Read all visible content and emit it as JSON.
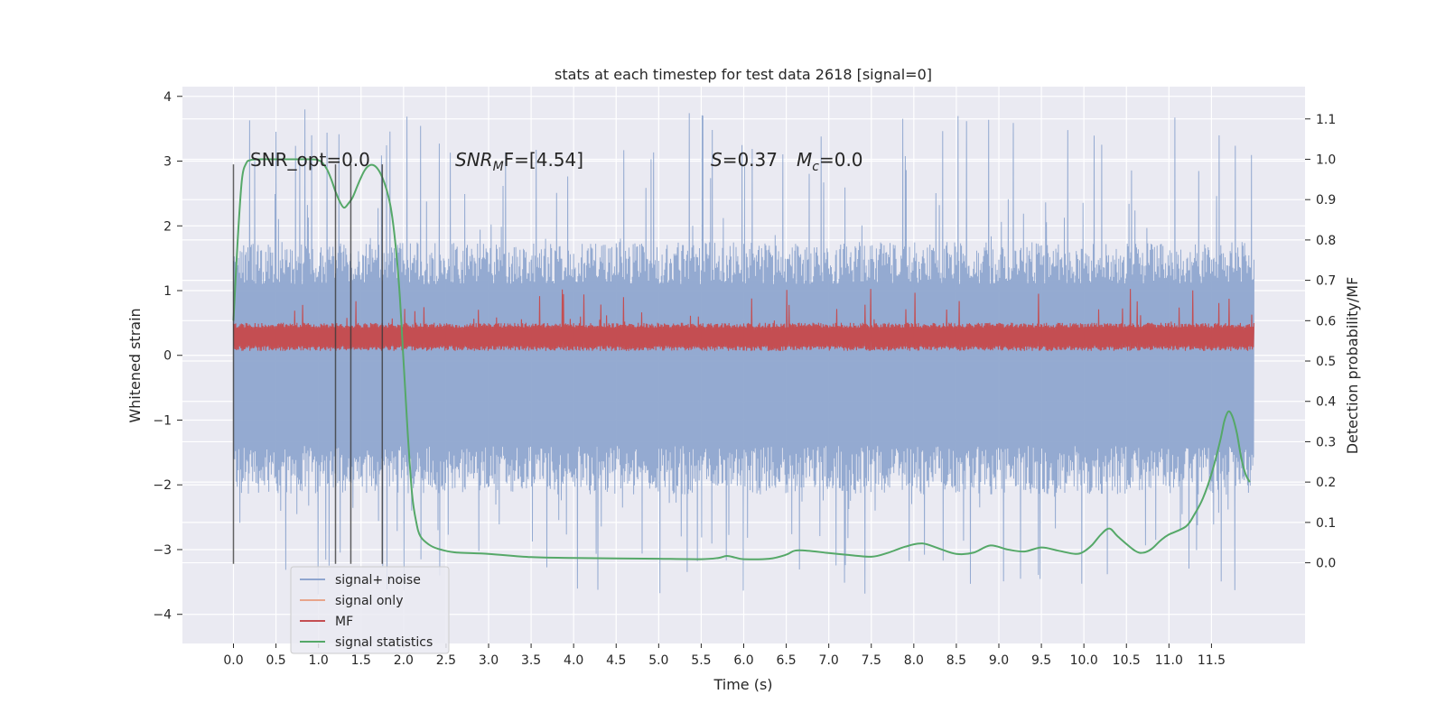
{
  "chart_data": {
    "type": "line",
    "title": "stats at each timestep for test data 2618 [signal=0]",
    "xlabel": "Time (s)",
    "ylabel_left": "Whitened strain",
    "ylabel_right": "Detection probability/MF",
    "xlim": [
      -0.6,
      12.6
    ],
    "ylim_left": [
      -4.45,
      4.15
    ],
    "ylim_right": [
      -0.2,
      1.18
    ],
    "xticks": [
      0.0,
      0.5,
      1.0,
      1.5,
      2.0,
      2.5,
      3.0,
      3.5,
      4.0,
      4.5,
      5.0,
      5.5,
      6.0,
      6.5,
      7.0,
      7.5,
      8.0,
      8.5,
      9.0,
      9.5,
      10.0,
      10.5,
      11.0,
      11.5
    ],
    "xtick_labels": [
      "0.0",
      "0.5",
      "1.0",
      "1.5",
      "2.0",
      "2.5",
      "3.0",
      "3.5",
      "4.0",
      "4.5",
      "5.0",
      "5.5",
      "6.0",
      "6.5",
      "7.0",
      "7.5",
      "8.0",
      "8.5",
      "9.0",
      "9.5",
      "10.0",
      "10.5",
      "11.0",
      "11.5"
    ],
    "yticks_left": [
      4,
      3,
      2,
      1,
      0,
      -1,
      -2,
      -3,
      -4
    ],
    "ytick_labels_left": [
      "4",
      "3",
      "2",
      "1",
      "0",
      "−1",
      "−2",
      "−3",
      "−4"
    ],
    "yticks_right": [
      1.1,
      1.0,
      0.9,
      0.8,
      0.7,
      0.6,
      0.5,
      0.4,
      0.3,
      0.2,
      0.1,
      0.0
    ],
    "ytick_labels_right": [
      "1.1",
      "1.0",
      "0.9",
      "0.8",
      "0.7",
      "0.6",
      "0.5",
      "0.4",
      "0.3",
      "0.2",
      "0.1",
      "0.0"
    ],
    "grid": true,
    "legend_position": "lower-left",
    "annotations": {
      "snr_opt": "SNR_opt=0.0",
      "snr_mf_label": "SNR",
      "snr_mf_sub": "M",
      "snr_mf_rest": "F=[4.54]",
      "s_label": "S",
      "s_rest": "=0.37",
      "mc_label": "M",
      "mc_sub": "c",
      "mc_rest": "=0.0"
    },
    "vertical_markers": [
      0.0,
      1.2,
      1.38,
      1.75
    ],
    "series": [
      {
        "name": "signal+ noise",
        "color": "#8fa6cf",
        "axis": "left",
        "envelope": {
          "x_range": [
            0.0,
            12.0
          ],
          "core_range": [
            -1.4,
            1.1
          ],
          "max_spike": 3.8,
          "min_spike": -3.7
        }
      },
      {
        "name": "signal only",
        "color": "#e8a58b",
        "axis": "left",
        "x": [],
        "y": []
      },
      {
        "name": "MF",
        "color": "#c44e52",
        "axis": "right",
        "envelope": {
          "x_range": [
            0.0,
            12.0
          ],
          "band": [
            0.525,
            0.595
          ],
          "max_peak": 0.68
        }
      },
      {
        "name": "signal statistics",
        "color": "#55a868",
        "axis": "right",
        "x": [
          0.0,
          0.05,
          0.1,
          0.15,
          0.2,
          0.3,
          0.5,
          0.7,
          0.9,
          1.0,
          1.05,
          1.1,
          1.15,
          1.2,
          1.25,
          1.3,
          1.35,
          1.4,
          1.45,
          1.5,
          1.55,
          1.6,
          1.65,
          1.7,
          1.75,
          1.8,
          1.85,
          1.9,
          1.95,
          2.0,
          2.05,
          2.1,
          2.15,
          2.2,
          2.3,
          2.4,
          2.6,
          3.0,
          3.5,
          4.0,
          4.5,
          5.0,
          5.5,
          5.7,
          5.8,
          5.9,
          6.0,
          6.3,
          6.5,
          6.6,
          6.75,
          7.0,
          7.2,
          7.5,
          7.7,
          7.9,
          8.1,
          8.3,
          8.5,
          8.7,
          8.9,
          9.1,
          9.3,
          9.5,
          9.7,
          9.9,
          10.0,
          10.1,
          10.2,
          10.3,
          10.4,
          10.6,
          10.7,
          10.8,
          10.9,
          11.0,
          11.2,
          11.3,
          11.4,
          11.5,
          11.6,
          11.65,
          11.7,
          11.75,
          11.8,
          11.85,
          11.9,
          11.95
        ],
        "y": [
          0.6,
          0.8,
          0.95,
          0.99,
          0.998,
          1.0,
          1.0,
          1.0,
          1.0,
          0.998,
          0.99,
          0.975,
          0.95,
          0.92,
          0.895,
          0.88,
          0.89,
          0.905,
          0.93,
          0.955,
          0.975,
          0.985,
          0.985,
          0.975,
          0.955,
          0.925,
          0.88,
          0.8,
          0.68,
          0.5,
          0.32,
          0.17,
          0.1,
          0.065,
          0.045,
          0.035,
          0.026,
          0.022,
          0.014,
          0.012,
          0.011,
          0.01,
          0.009,
          0.012,
          0.017,
          0.013,
          0.009,
          0.01,
          0.02,
          0.03,
          0.03,
          0.024,
          0.02,
          0.015,
          0.025,
          0.04,
          0.048,
          0.035,
          0.022,
          0.025,
          0.043,
          0.033,
          0.028,
          0.038,
          0.03,
          0.022,
          0.028,
          0.045,
          0.07,
          0.085,
          0.065,
          0.03,
          0.025,
          0.035,
          0.055,
          0.07,
          0.09,
          0.12,
          0.16,
          0.22,
          0.3,
          0.35,
          0.375,
          0.36,
          0.32,
          0.26,
          0.22,
          0.2
        ]
      }
    ]
  }
}
